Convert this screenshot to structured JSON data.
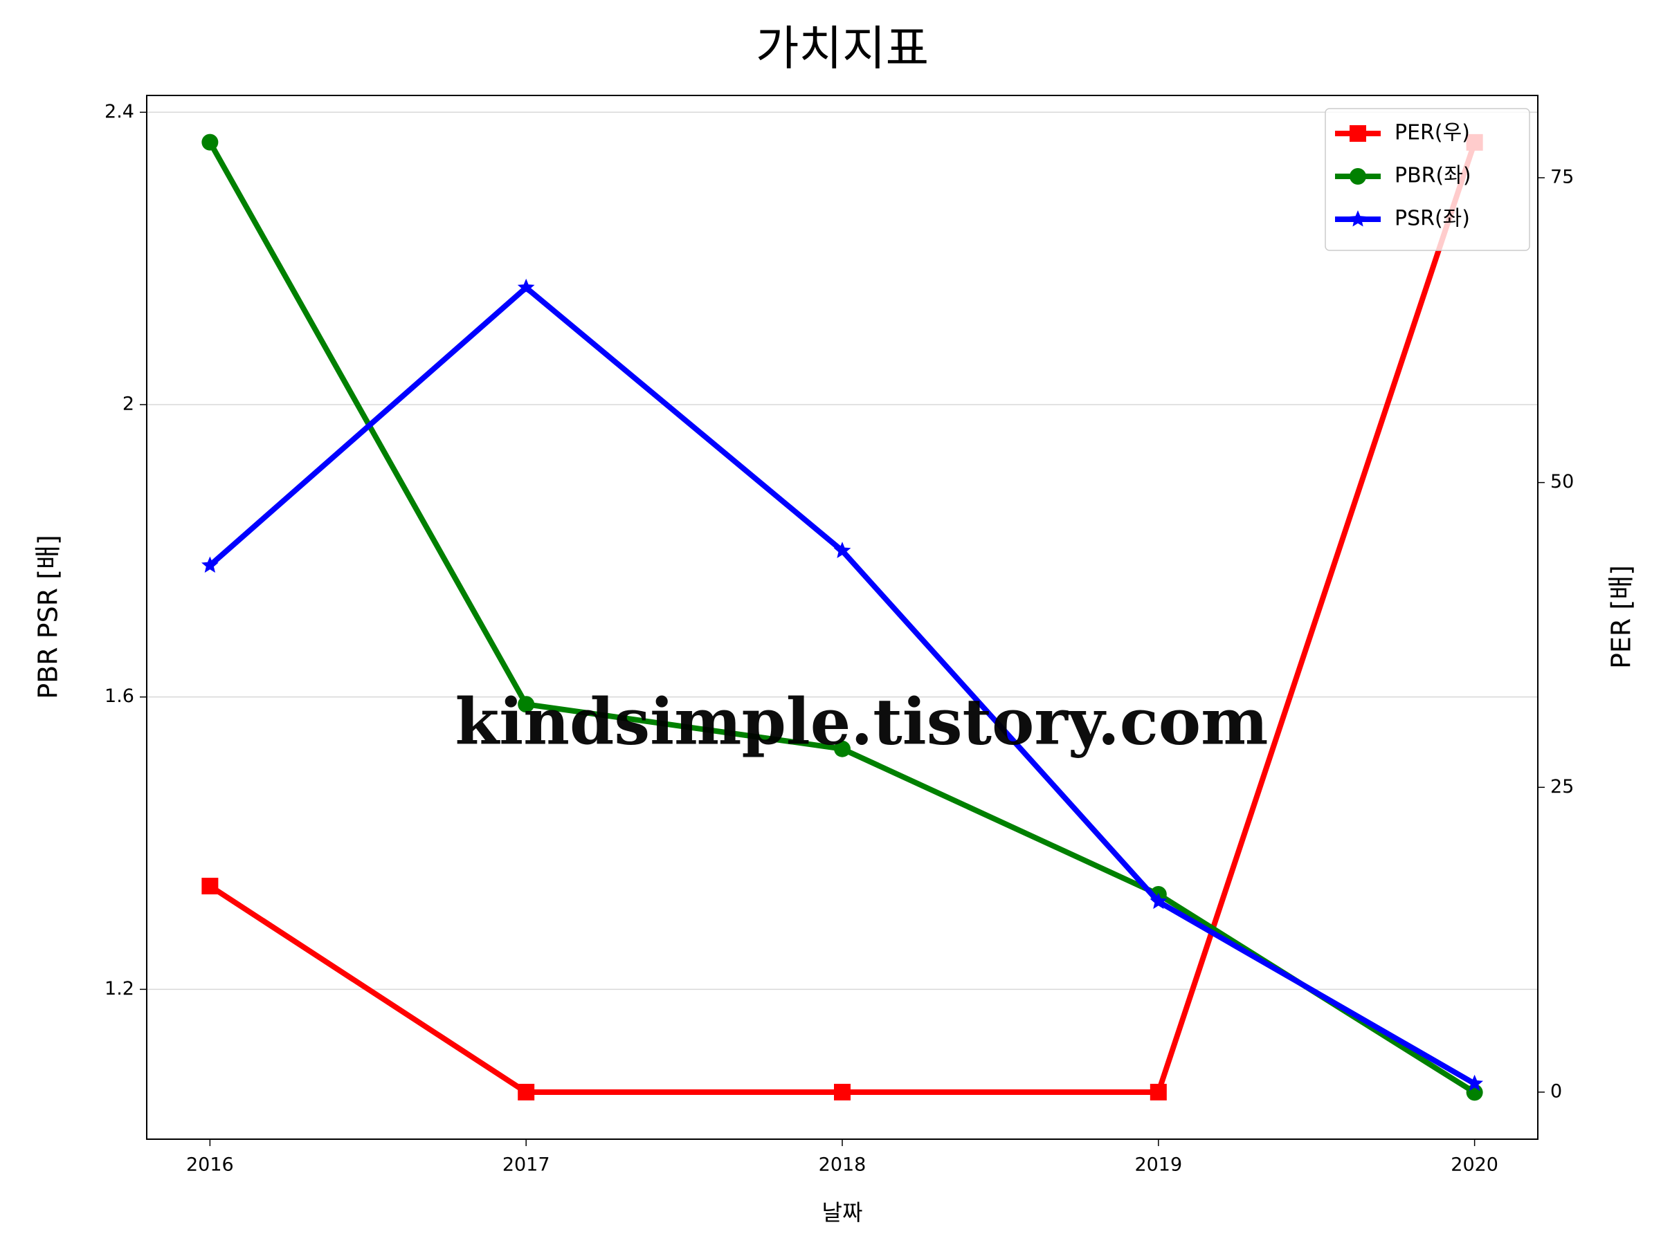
{
  "chart_data": {
    "type": "line",
    "title": "가치지표",
    "xlabel": "날짜",
    "ylabel": "PBR PSR [배]",
    "y2label": "PER [배]",
    "ylabel_color": "#008000",
    "y2label_color": "#ff0000",
    "x": [
      2016,
      2017,
      2018,
      2019,
      2020
    ],
    "xlim": [
      2015.8,
      2020.2
    ],
    "xticks": [
      2016,
      2017,
      2018,
      2019,
      2020
    ],
    "ylim": [
      0.995,
      2.423
    ],
    "yticks": [
      1.2,
      1.6,
      2.0,
      2.4
    ],
    "y2lim": [
      -3.86,
      81.75
    ],
    "y2ticks": [
      0,
      25,
      50,
      75
    ],
    "grid": true,
    "legend": "upper right",
    "annotation": "kindsimple.tistory.com",
    "series": [
      {
        "name": "PER(우)",
        "color": "#ff0000",
        "marker": "square",
        "axis": "y2",
        "values": [
          16.9,
          0,
          0,
          0,
          77.9
        ]
      },
      {
        "name": "PBR(좌)",
        "color": "#008000",
        "marker": "circle",
        "values": [
          2.359,
          1.59,
          1.529,
          1.33,
          1.059
        ]
      },
      {
        "name": "PSR(좌)",
        "color": "#0000ff",
        "marker": "star",
        "values": [
          1.78,
          2.16,
          1.8,
          1.32,
          1.071
        ]
      }
    ]
  }
}
